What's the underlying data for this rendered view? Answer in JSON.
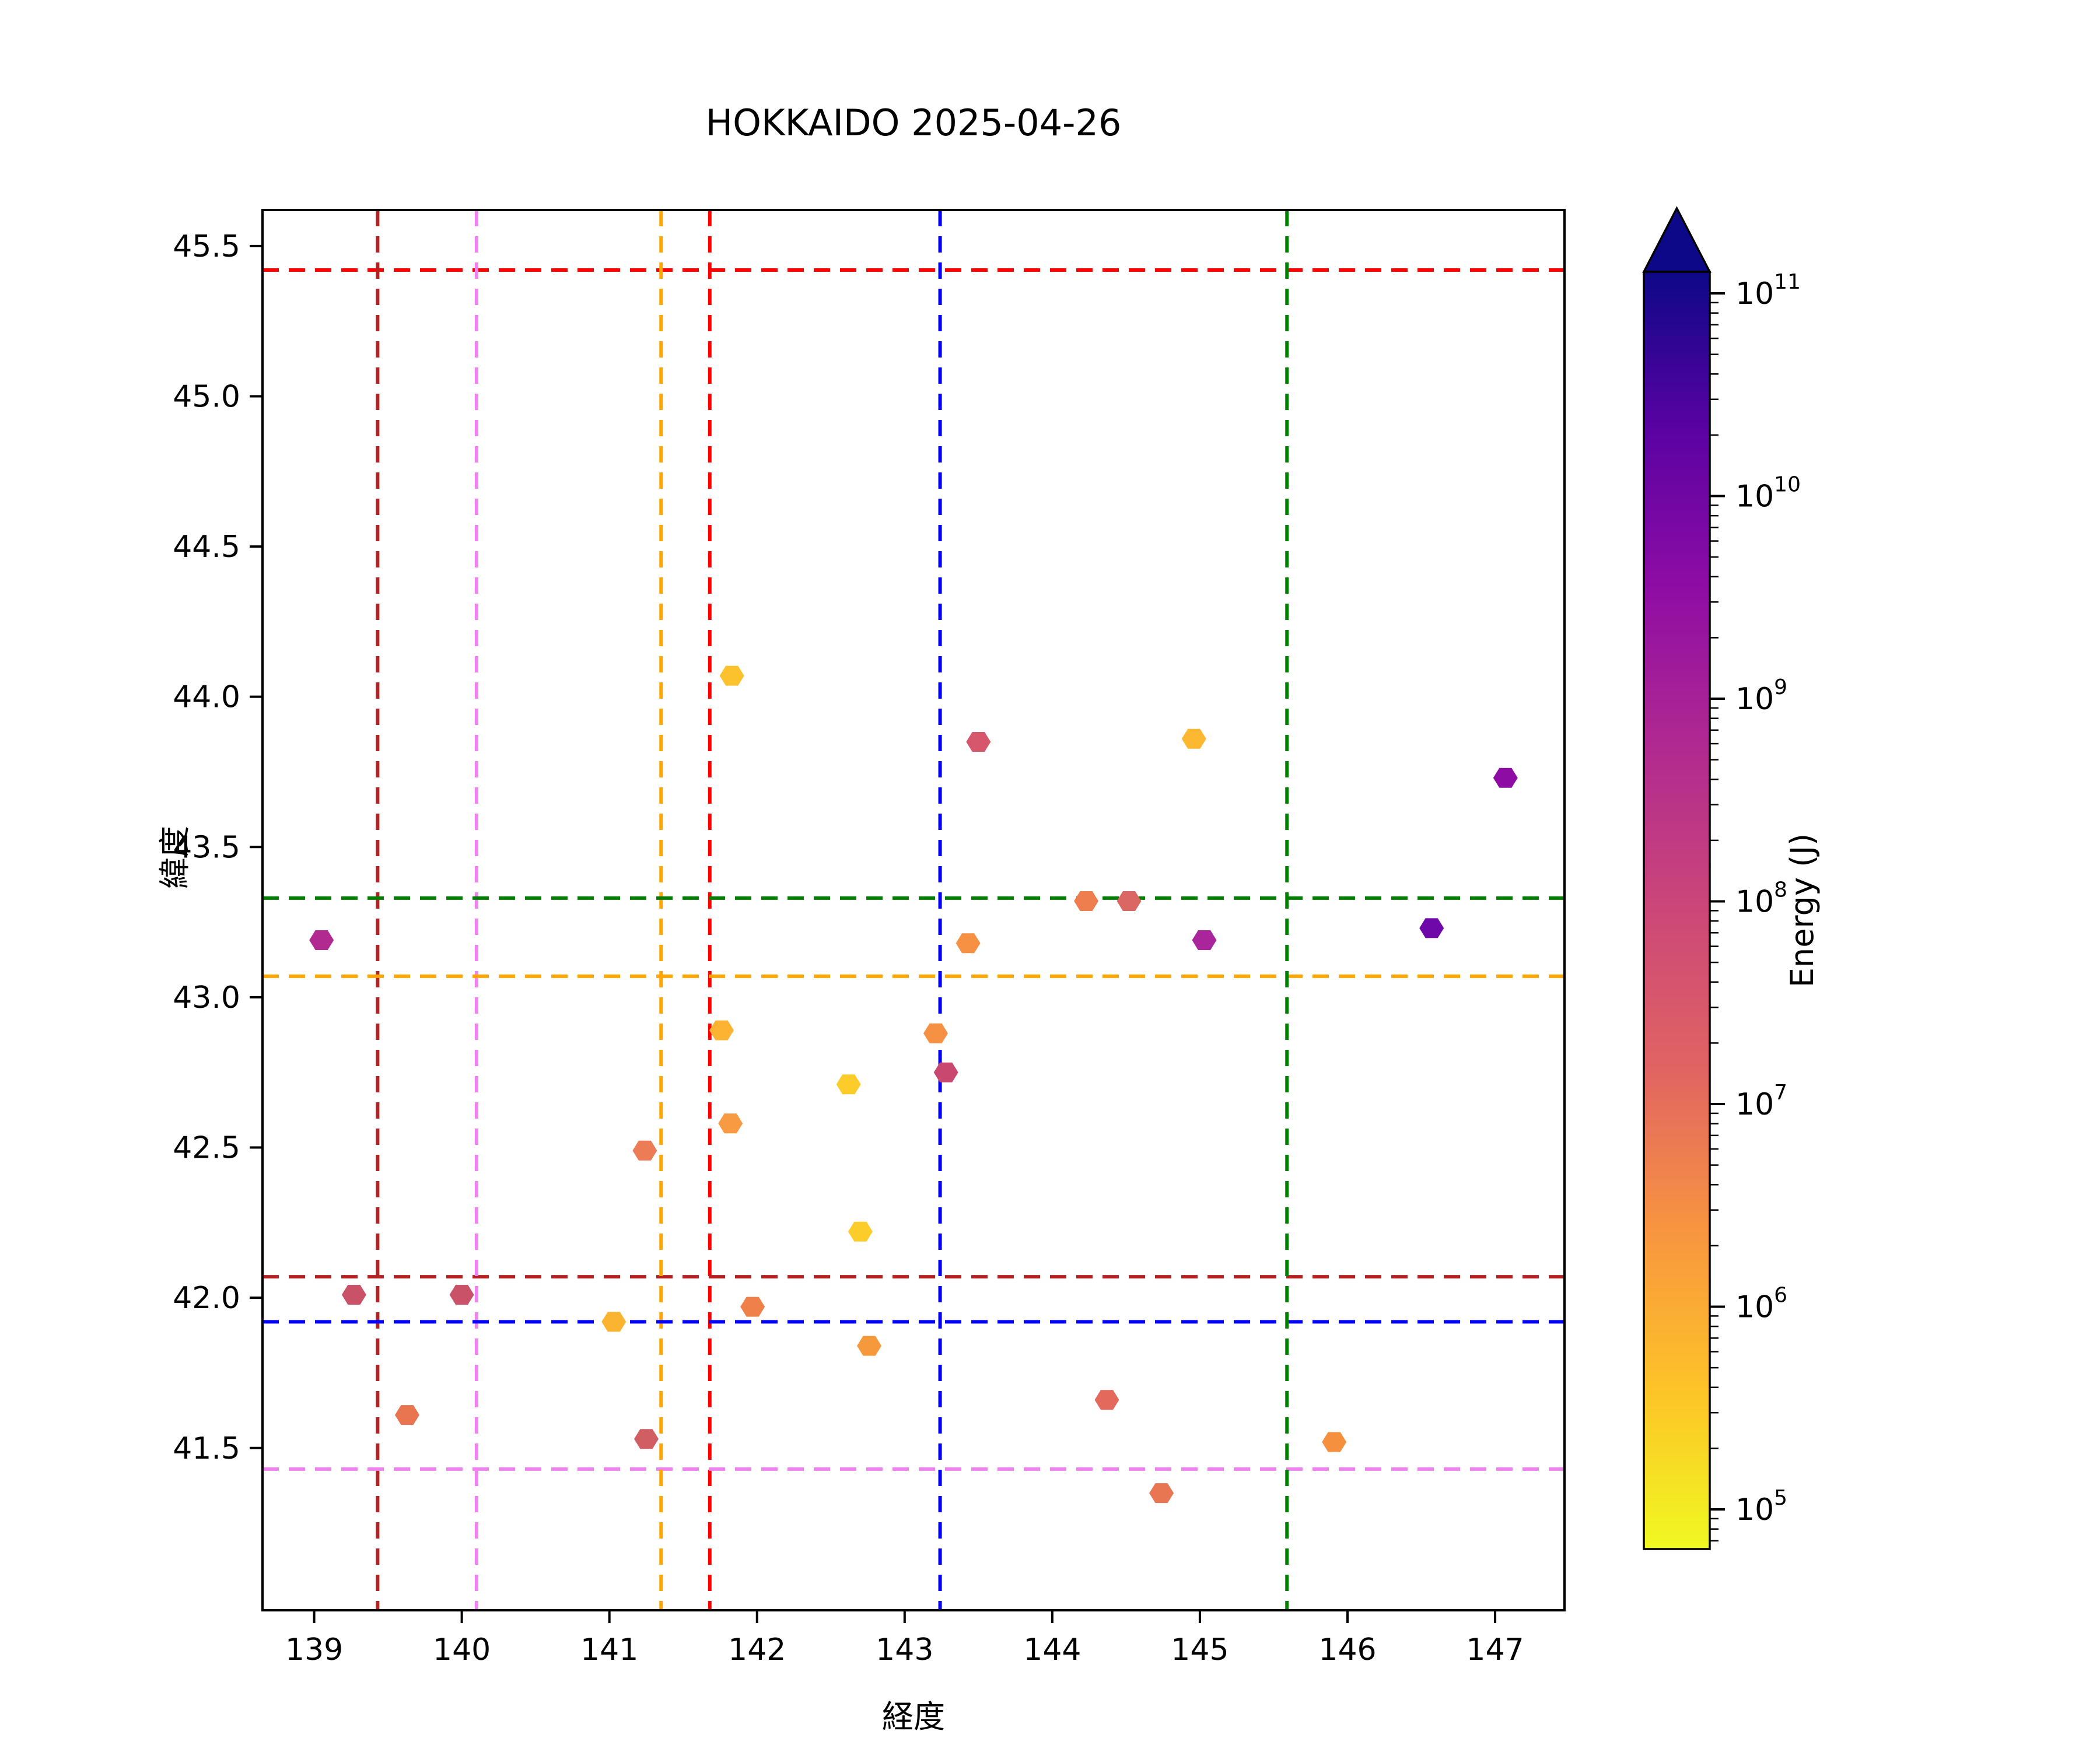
{
  "chart_data": {
    "type": "scatter",
    "title": "HOKKAIDO 2025-04-26",
    "xlabel": "経度",
    "ylabel": "緯度",
    "xlim": [
      138.65,
      147.47
    ],
    "ylim": [
      40.96,
      45.62
    ],
    "x_ticks": [
      139,
      140,
      141,
      142,
      143,
      144,
      145,
      146,
      147
    ],
    "y_ticks": [
      41.5,
      42.0,
      42.5,
      43.0,
      43.5,
      44.0,
      44.5,
      45.0,
      45.5
    ],
    "grid": false,
    "marker": "hexagon",
    "legend": "none",
    "colorbar": {
      "label": "Energy (J)",
      "scale": "log",
      "cmap": "plasma_r",
      "extend": "max",
      "tick_exponents": [
        5,
        6,
        7,
        8,
        9,
        10,
        11
      ],
      "vmin_est": 64000,
      "vmax_est": 120000000000,
      "gradient_top_to_bottom": [
        "#0d0887",
        "#5b02a3",
        "#8f0da4",
        "#b12a90",
        "#cc4778",
        "#e16462",
        "#f89540",
        "#fdc328",
        "#f0f921"
      ]
    },
    "points": [
      {
        "lon": 139.05,
        "lat": 43.19,
        "color": "#b12a90",
        "energy_j_est": 500000000.0
      },
      {
        "lon": 139.27,
        "lat": 42.01,
        "color": "#c95168",
        "energy_j_est": 70000000.0
      },
      {
        "lon": 139.63,
        "lat": 41.61,
        "color": "#e87450",
        "energy_j_est": 15000000.0
      },
      {
        "lon": 140.0,
        "lat": 42.01,
        "color": "#c95168",
        "energy_j_est": 70000000.0
      },
      {
        "lon": 141.03,
        "lat": 41.92,
        "color": "#fbb431",
        "energy_j_est": 800000.0
      },
      {
        "lon": 141.24,
        "lat": 42.49,
        "color": "#ec7c55",
        "energy_j_est": 8000000.0
      },
      {
        "lon": 141.25,
        "lat": 41.53,
        "color": "#d05e63",
        "energy_j_est": 30000000.0
      },
      {
        "lon": 141.83,
        "lat": 44.07,
        "color": "#fcc22d",
        "energy_j_est": 500000.0
      },
      {
        "lon": 141.76,
        "lat": 42.89,
        "color": "#fbb331",
        "energy_j_est": 800000.0
      },
      {
        "lon": 141.82,
        "lat": 42.58,
        "color": "#f79a42",
        "energy_j_est": 1700000.0
      },
      {
        "lon": 141.97,
        "lat": 41.97,
        "color": "#ef8049",
        "energy_j_est": 4000000.0
      },
      {
        "lon": 142.62,
        "lat": 42.71,
        "color": "#fccd2a",
        "energy_j_est": 350000.0
      },
      {
        "lon": 142.7,
        "lat": 42.22,
        "color": "#fccd2a",
        "energy_j_est": 350000.0
      },
      {
        "lon": 142.76,
        "lat": 41.84,
        "color": "#f6993c",
        "energy_j_est": 2000000.0
      },
      {
        "lon": 143.21,
        "lat": 42.88,
        "color": "#f69043",
        "energy_j_est": 2500000.0
      },
      {
        "lon": 143.28,
        "lat": 42.75,
        "color": "#c9486f",
        "energy_j_est": 100000000.0
      },
      {
        "lon": 143.43,
        "lat": 43.18,
        "color": "#f69043",
        "energy_j_est": 2500000.0
      },
      {
        "lon": 143.5,
        "lat": 43.85,
        "color": "#d6566b",
        "energy_j_est": 40000000.0
      },
      {
        "lon": 144.23,
        "lat": 43.32,
        "color": "#ee7e4e",
        "energy_j_est": 6000000.0
      },
      {
        "lon": 144.52,
        "lat": 43.32,
        "color": "#da6763",
        "energy_j_est": 20000000.0
      },
      {
        "lon": 144.37,
        "lat": 41.66,
        "color": "#e2695b",
        "energy_j_est": 16000000.0
      },
      {
        "lon": 144.74,
        "lat": 41.35,
        "color": "#e87652",
        "energy_j_est": 12000000.0
      },
      {
        "lon": 144.96,
        "lat": 43.86,
        "color": "#fcb830",
        "energy_j_est": 700000.0
      },
      {
        "lon": 145.03,
        "lat": 43.19,
        "color": "#aa249c",
        "energy_j_est": 600000000.0
      },
      {
        "lon": 145.91,
        "lat": 41.52,
        "color": "#f5903f",
        "energy_j_est": 2700000.0
      },
      {
        "lon": 146.57,
        "lat": 43.23,
        "color": "#6f08a8",
        "energy_j_est": 16000000000.0
      },
      {
        "lon": 147.07,
        "lat": 43.73,
        "color": "#8d0da4",
        "energy_j_est": 3000000000.0
      }
    ],
    "reference_lines": [
      {
        "name": "red-crosshair",
        "color": "#ff0000",
        "lon": 141.68,
        "lat": 45.42
      },
      {
        "name": "firebrick-crosshair",
        "color": "#b22222",
        "lon": 139.43,
        "lat": 42.07
      },
      {
        "name": "violet-crosshair",
        "color": "#ee82ee",
        "lon": 140.1,
        "lat": 41.43
      },
      {
        "name": "orange-crosshair",
        "color": "#ffa500",
        "lon": 141.35,
        "lat": 43.07
      },
      {
        "name": "blue-crosshair",
        "color": "#0000ff",
        "lon": 143.24,
        "lat": 41.92
      },
      {
        "name": "green-crosshair",
        "color": "#008000",
        "lon": 145.59,
        "lat": 43.33
      }
    ]
  }
}
